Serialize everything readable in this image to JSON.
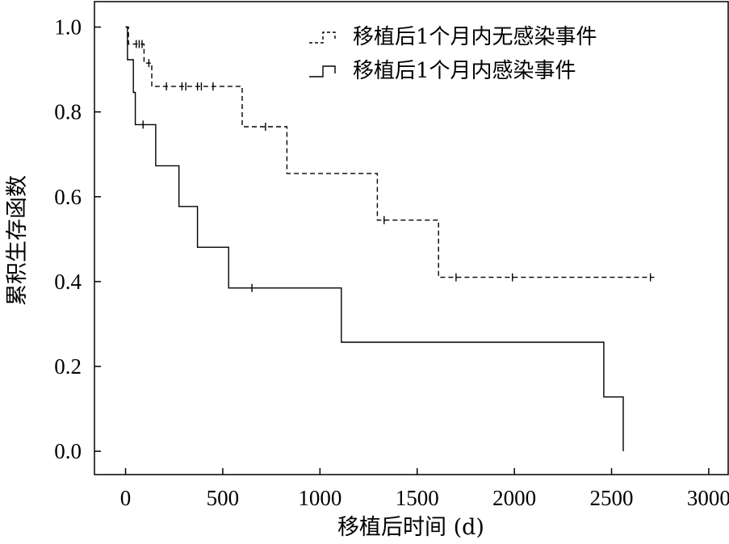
{
  "chart_data": {
    "type": "line",
    "subtype": "kaplan-meier step",
    "xlabel": "移植后时间 (d)",
    "ylabel": "累积生存函数",
    "xlim": [
      -160,
      3100
    ],
    "ylim": [
      -0.055,
      1.06
    ],
    "xticks": [
      0,
      500,
      1000,
      1500,
      2000,
      2500,
      3000
    ],
    "yticks": [
      0.0,
      0.2,
      0.4,
      0.6,
      0.8,
      1.0
    ],
    "ytick_labels": [
      "0.0",
      "0.2",
      "0.4",
      "0.6",
      "0.8",
      "1.0"
    ],
    "grid": false,
    "legend_position": "top-right",
    "series": [
      {
        "name": "移植后1个月内无感染事件",
        "line_style": "dashed",
        "color": "#000000",
        "steps": [
          [
            0,
            1.0
          ],
          [
            15,
            0.96
          ],
          [
            95,
            0.915
          ],
          [
            135,
            0.86
          ],
          [
            600,
            0.765
          ],
          [
            830,
            0.655
          ],
          [
            1295,
            0.545
          ],
          [
            1610,
            0.41
          ],
          [
            2720,
            0.41
          ]
        ],
        "censored": [
          [
            55,
            0.96
          ],
          [
            70,
            0.96
          ],
          [
            85,
            0.96
          ],
          [
            120,
            0.915
          ],
          [
            210,
            0.86
          ],
          [
            290,
            0.86
          ],
          [
            310,
            0.86
          ],
          [
            370,
            0.86
          ],
          [
            390,
            0.86
          ],
          [
            450,
            0.86
          ],
          [
            720,
            0.765
          ],
          [
            1330,
            0.545
          ],
          [
            1700,
            0.41
          ],
          [
            1990,
            0.41
          ],
          [
            2700,
            0.41
          ]
        ]
      },
      {
        "name": "移植后1个月内感染事件",
        "line_style": "solid",
        "color": "#000000",
        "steps": [
          [
            0,
            1.0
          ],
          [
            10,
            0.923
          ],
          [
            40,
            0.846
          ],
          [
            50,
            0.77
          ],
          [
            155,
            0.673
          ],
          [
            275,
            0.577
          ],
          [
            370,
            0.481
          ],
          [
            530,
            0.385
          ],
          [
            1110,
            0.257
          ],
          [
            2460,
            0.128
          ],
          [
            2560,
            0.0
          ],
          [
            2560,
            0.0
          ]
        ],
        "censored": [
          [
            90,
            0.77
          ],
          [
            650,
            0.385
          ]
        ]
      }
    ]
  }
}
